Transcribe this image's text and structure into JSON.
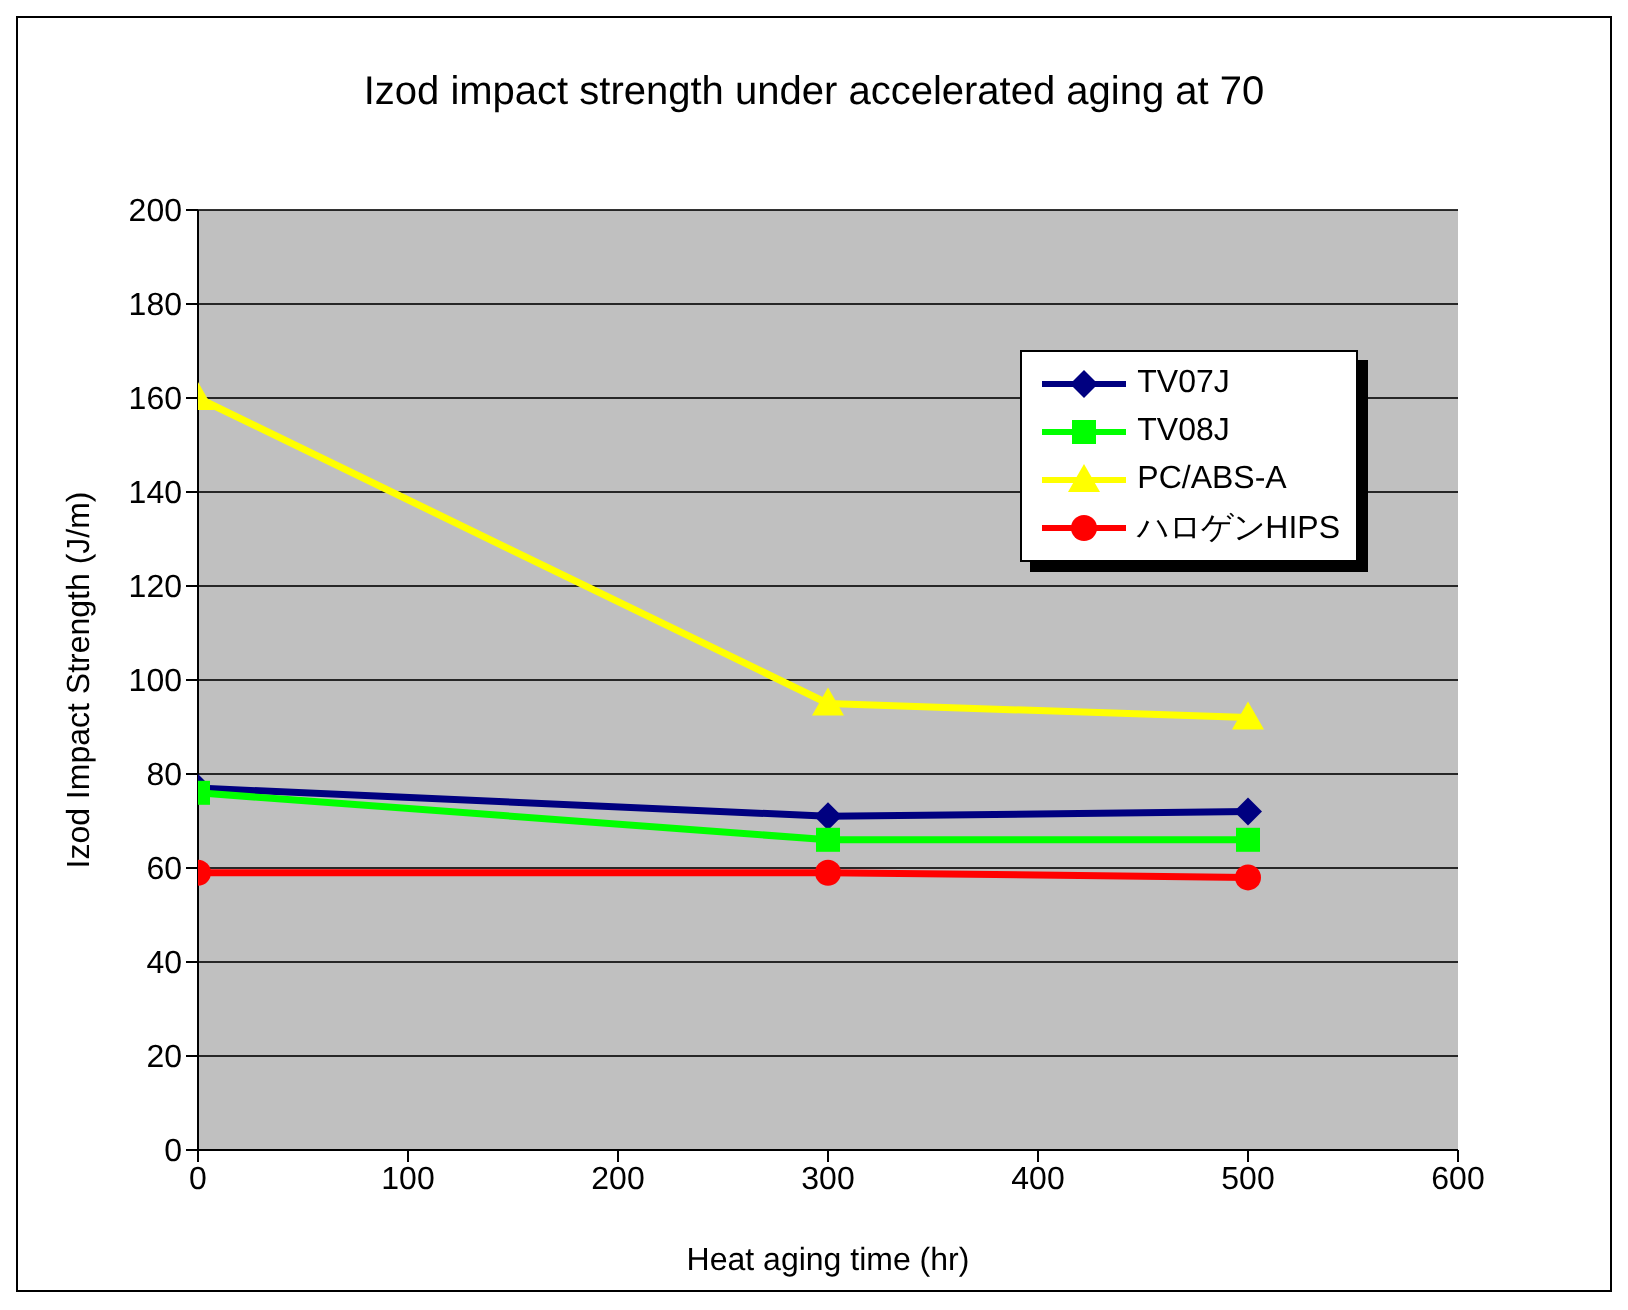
{
  "chart_data": {
    "type": "line",
    "title": "Izod impact strength under accelerated aging at 70",
    "xlabel": "Heat aging time (hr)",
    "ylabel": "Izod Impact Strength (J/m)",
    "x": [
      0,
      300,
      500
    ],
    "series": [
      {
        "name": "TV07J",
        "color": "#000080",
        "marker": "diamond",
        "values": [
          77,
          71,
          72
        ]
      },
      {
        "name": "TV08J",
        "color": "#00ff00",
        "marker": "square",
        "values": [
          76,
          66,
          66
        ]
      },
      {
        "name": "PC/ABS-A",
        "color": "#ffff00",
        "marker": "triangle",
        "values": [
          160,
          95,
          92
        ]
      },
      {
        "name": "ハロゲンHIPS",
        "color": "#ff0000",
        "marker": "circle",
        "values": [
          59,
          59,
          58
        ]
      }
    ],
    "xlim": [
      0,
      600
    ],
    "xticks": [
      0,
      100,
      200,
      300,
      400,
      500,
      600
    ],
    "ylim": [
      0,
      200
    ],
    "yticks": [
      0,
      20,
      40,
      60,
      80,
      100,
      120,
      140,
      160,
      180,
      200
    ],
    "grid": "y",
    "legend": "top right",
    "line_style": "solid"
  }
}
